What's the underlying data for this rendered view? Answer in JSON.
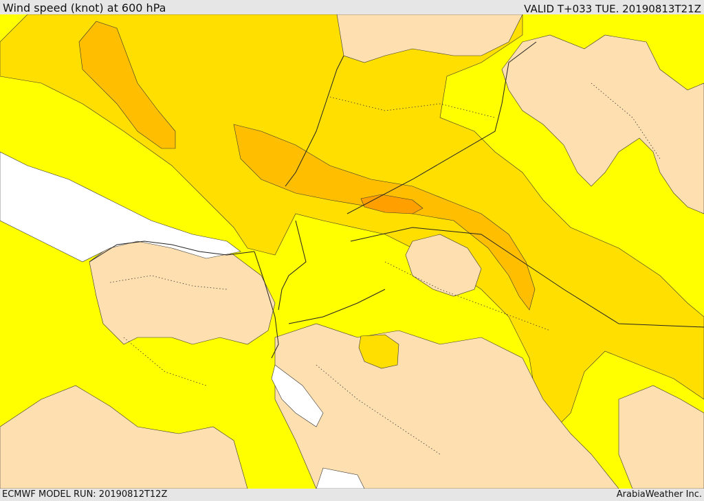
{
  "header": {
    "title": "Wind speed (knot) at 600 hPa",
    "valid": "VALID T+033 TUE. 20190813T21Z"
  },
  "footer": {
    "model_run": "ECMWF MODEL RUN: 20190812T12Z",
    "credit": "ArabiaWeather Inc."
  },
  "map": {
    "field": "wind speed",
    "unit": "knot",
    "level": "600 hPa",
    "colors": {
      "water_or_low": "#ffffff",
      "band_1": "#fedfb0",
      "band_2": "#ffff00",
      "band_3": "#ffdf00",
      "band_4": "#ffbf00",
      "band_5": "#ff9f00",
      "border": "#222222"
    }
  }
}
